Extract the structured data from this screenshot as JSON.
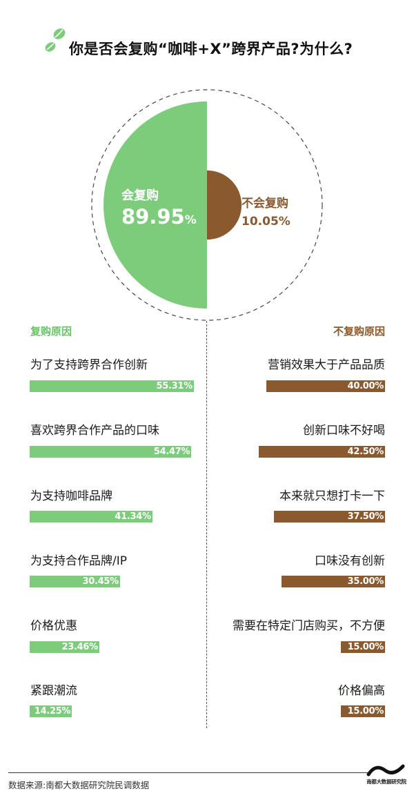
{
  "title": "你是否会复购“咖啡+X”跨界产品?为什么?",
  "colors": {
    "green": "#7ccc7b",
    "brown": "#8a5a2e",
    "green_text": "#6cc16b"
  },
  "icons": {
    "header_logo": "coffee-beans-icon",
    "brand_logo": "nandu-wave-icon"
  },
  "chart_data": [
    {
      "type": "pie",
      "title": "你是否会复购“咖啡+X”跨界产品?为什么?",
      "slices": [
        {
          "label": "会复购",
          "value": 89.95,
          "display": "89.95",
          "unit": "%",
          "color": "#7ccc7b"
        },
        {
          "label": "不会复购",
          "value": 10.05,
          "display": "10.05%",
          "color": "#8a5a2e"
        }
      ]
    },
    {
      "type": "bar",
      "title": "复购原因",
      "categories": [
        "为了支持跨界合作创新",
        "喜欢跨界合作产品的口味",
        "为支持咖啡品牌",
        "为支持合作品牌/IP",
        "价格优惠",
        "紧跟潮流"
      ],
      "values": [
        55.31,
        54.47,
        41.34,
        30.45,
        23.46,
        14.25
      ],
      "labels": [
        "55.31%",
        "54.47%",
        "41.34%",
        "30.45%",
        "23.46%",
        "14.25%"
      ],
      "color": "#7ccc7b"
    },
    {
      "type": "bar",
      "title": "不复购原因",
      "categories": [
        "营销效果大于产品品质",
        "创新口味不好喝",
        "本来就只想打卡一下",
        "口味没有创新",
        "需要在特定门店购买，不方便",
        "价格偏高"
      ],
      "values": [
        40.0,
        42.5,
        37.5,
        35.0,
        15.0,
        15.0
      ],
      "labels": [
        "40.00%",
        "42.50%",
        "37.50%",
        "35.00%",
        "15.00%",
        "15.00%"
      ],
      "color": "#8a5a2e"
    }
  ],
  "footer": {
    "source": "数据来源:南都大数据研究院民调数据",
    "brand": "南都大数据研究院"
  }
}
